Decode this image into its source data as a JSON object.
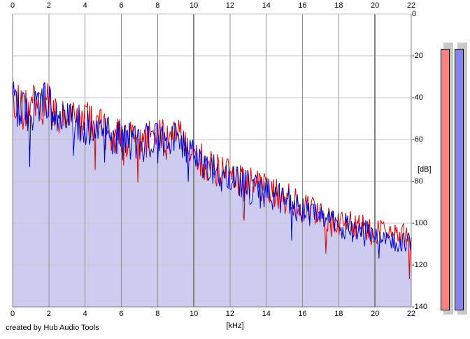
{
  "credit": "created by Hub Audio Tools",
  "axes": {
    "x": {
      "unit_label": "[kHz]",
      "min": 0,
      "max": 22,
      "tick_step": 2,
      "ticks": [
        "0",
        "2",
        "4",
        "6",
        "8",
        "10",
        "12",
        "14",
        "16",
        "18",
        "20",
        "22"
      ],
      "emphasized_ticks": [
        10,
        20
      ]
    },
    "y": {
      "unit_label": "[dB]",
      "min": -140,
      "max": 0,
      "tick_step": 20,
      "ticks": [
        "0",
        "-20",
        "-40",
        "-60",
        "-80",
        "-100",
        "-120",
        "-140"
      ]
    }
  },
  "colors": {
    "background": "#ffffff",
    "grid_vertical": "#909090",
    "grid_vertical_major": "#808080",
    "grid_horizontal": "#c6c6c6",
    "border_dark": "#808080",
    "border_light": "#c0c0c0",
    "trace_red": "#e00000",
    "trace_blue": "#0000cc",
    "area_fill": "#ccccee",
    "meter_left": "#ff8080",
    "meter_right": "#8484ec",
    "meter_shadow": "#c9c9c9",
    "text": "#000000"
  },
  "chart_data": {
    "type": "line",
    "title": "",
    "xlabel": "[kHz]",
    "ylabel": "[dB]",
    "xlim": [
      0,
      22
    ],
    "ylim": [
      -140,
      0
    ],
    "grid": true,
    "legend": "none",
    "bins": 420,
    "seed": 1234567,
    "noise_db_at_0khz": 11,
    "noise_db_at_22khz": 6,
    "spike_probability": 0.045,
    "spike_depth_db": 22,
    "series": [
      {
        "name": "spectrum-red",
        "color": "#e00000",
        "fill": "none",
        "envelope_x": [
          0,
          0.15,
          0.5,
          0.9,
          1.3,
          1.6,
          1.9,
          2.2,
          2.6,
          3.0,
          3.5,
          4.0,
          4.4,
          5.0,
          5.6,
          6.2,
          7.0,
          7.6,
          8.2,
          8.8,
          9.4,
          10.0,
          10.6,
          11.2,
          12.0,
          12.8,
          13.6,
          14.4,
          15.2,
          16.0,
          16.8,
          17.6,
          18.4,
          19.2,
          20.0,
          20.8,
          21.4,
          22.0
        ],
        "envelope_db": [
          -37,
          -42,
          -46,
          -45,
          -43,
          -44,
          -39,
          -47,
          -51,
          -52,
          -50,
          -51,
          -53,
          -56,
          -58,
          -60,
          -61,
          -60,
          -59,
          -57,
          -60,
          -67,
          -71,
          -74,
          -77,
          -80,
          -83,
          -85,
          -88,
          -92,
          -96,
          -98,
          -100,
          -102,
          -104,
          -105,
          -106,
          -105
        ]
      },
      {
        "name": "spectrum-blue",
        "color": "#0000cc",
        "fill": "#ccccee",
        "envelope_x": [
          0,
          0.15,
          0.5,
          0.9,
          1.3,
          1.6,
          1.9,
          2.2,
          2.6,
          3.0,
          3.5,
          4.0,
          4.4,
          5.0,
          5.6,
          6.2,
          7.0,
          7.6,
          8.2,
          8.8,
          9.4,
          10.0,
          10.6,
          11.2,
          12.0,
          12.8,
          13.6,
          14.4,
          15.2,
          16.0,
          16.8,
          17.6,
          18.4,
          19.2,
          20.0,
          20.8,
          21.4,
          22.0
        ],
        "envelope_db": [
          -36,
          -43,
          -47,
          -46,
          -44,
          -45,
          -40,
          -48,
          -52,
          -53,
          -52,
          -53,
          -55,
          -57,
          -59,
          -61,
          -62,
          -61,
          -60,
          -59,
          -62,
          -69,
          -73,
          -76,
          -79,
          -82,
          -85,
          -87,
          -90,
          -94,
          -98,
          -100,
          -102,
          -104,
          -106,
          -107,
          -108,
          -107
        ]
      }
    ]
  },
  "level_meters": {
    "left": {
      "name": "left-level-meter",
      "color": "#ff8080",
      "value_db": -18
    },
    "right": {
      "name": "right-level-meter",
      "color": "#8484ec",
      "value_db": -18
    }
  }
}
